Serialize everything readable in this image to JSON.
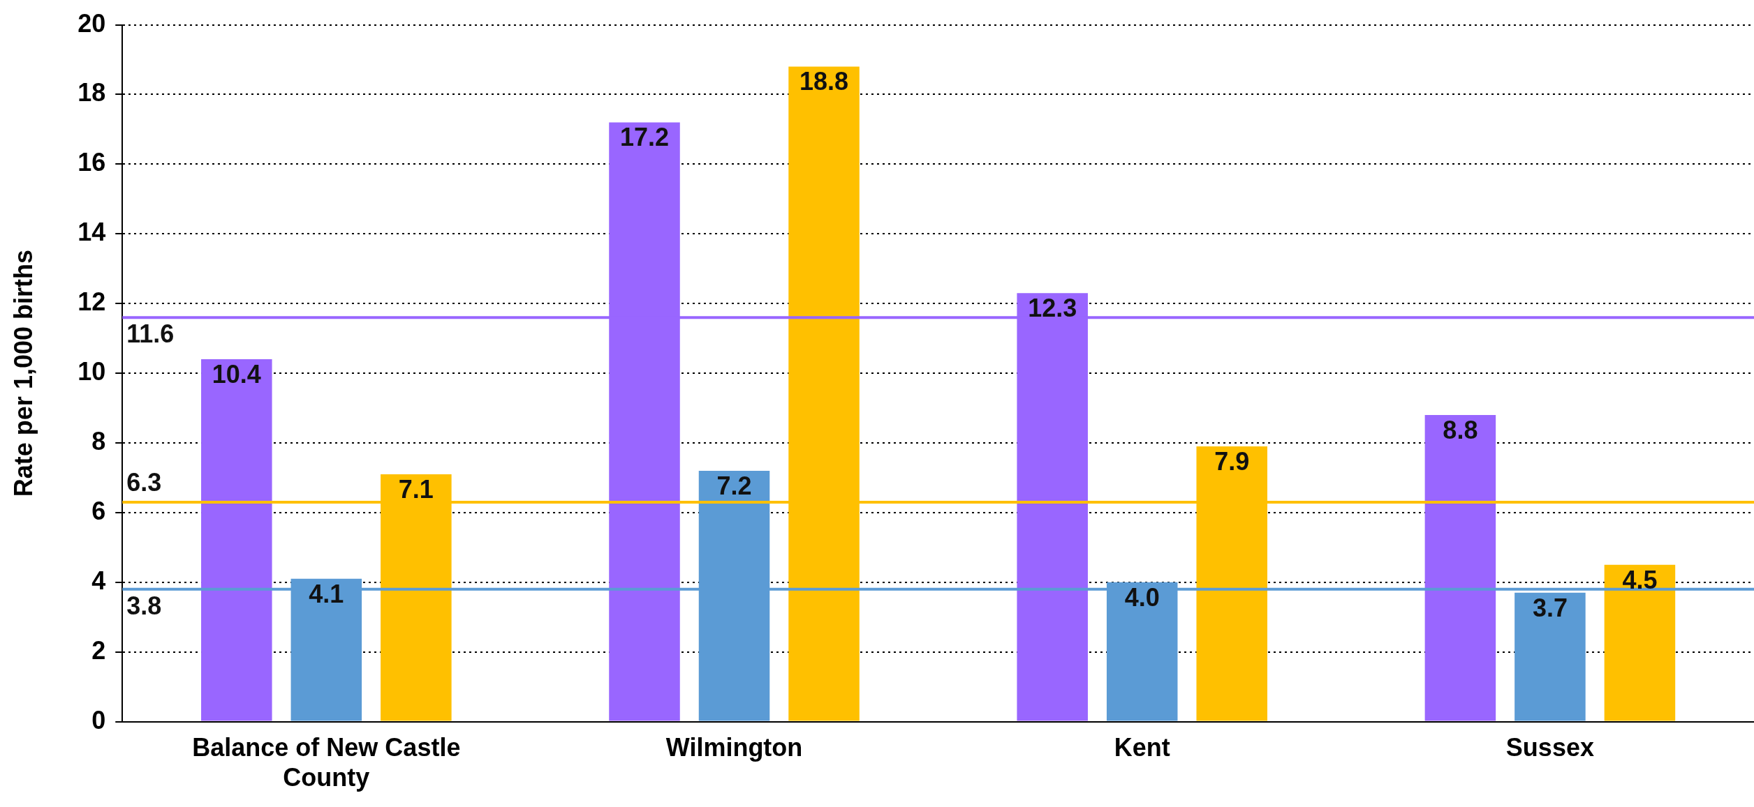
{
  "chart_data": {
    "type": "bar",
    "ylabel": "Rate per 1,000 births",
    "categories": [
      "Balance of New Castle County",
      "Wilmington",
      "Kent",
      "Sussex"
    ],
    "series": [
      {
        "color": "#9966ff",
        "values": [
          10.4,
          17.2,
          12.3,
          8.8
        ],
        "value_labels": [
          "10.4",
          "17.2",
          "12.3",
          "8.8"
        ]
      },
      {
        "color": "#5b9bd5",
        "values": [
          4.1,
          7.2,
          4.0,
          3.7
        ],
        "value_labels": [
          "4.1",
          "7.2",
          "4.0",
          "3.7"
        ]
      },
      {
        "color": "#ffc000",
        "values": [
          7.1,
          18.8,
          7.9,
          4.5
        ],
        "value_labels": [
          "7.1",
          "18.8",
          "7.9",
          "4.5"
        ]
      }
    ],
    "ylim": [
      0,
      20
    ],
    "yticks": [
      0,
      2,
      4,
      6,
      8,
      10,
      12,
      14,
      16,
      18,
      20
    ],
    "grid": "y",
    "legend": false,
    "ref_lines": [
      {
        "axis": "y",
        "value": 11.6,
        "label": "11.6",
        "color": "#9966ff",
        "line_style": "solid"
      },
      {
        "axis": "y",
        "value": 6.3,
        "label": "6.3",
        "color": "#ffc000",
        "line_style": "solid"
      },
      {
        "axis": "y",
        "value": 3.8,
        "label": "3.8",
        "color": "#5b9bd5",
        "line_style": "solid"
      }
    ]
  }
}
